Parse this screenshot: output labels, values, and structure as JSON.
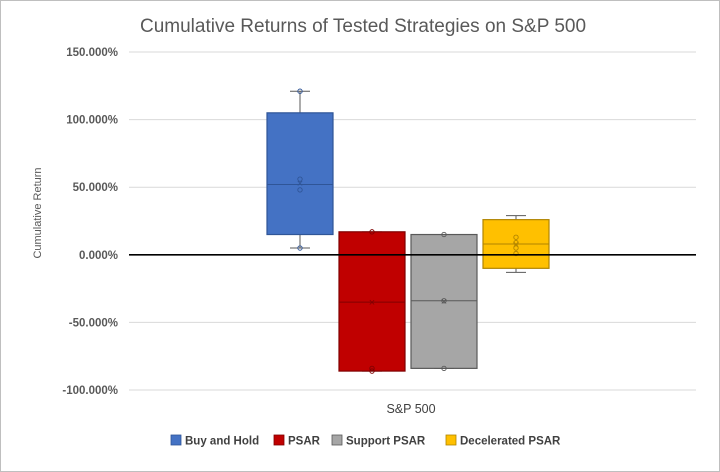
{
  "chart_data": {
    "type": "box",
    "title": "Cumulative Returns of Tested Strategies on S&P 500",
    "xlabel": "S&P 500",
    "ylabel": "Cumulative Return",
    "categories": [
      "S&P 500"
    ],
    "ylim": [
      -100,
      150
    ],
    "yticks": [
      -100,
      -50,
      0,
      50,
      100,
      150
    ],
    "ytick_labels": [
      "-100.000%",
      "-50.000%",
      "0.000%",
      "50.000%",
      "100.000%",
      "150.000%"
    ],
    "grid": true,
    "legend_position": "bottom",
    "series": [
      {
        "name": "Buy and Hold",
        "color": "#4472C4",
        "edge": "#2F5597",
        "min": 5,
        "q1": 15,
        "median": 52,
        "q3": 105,
        "max": 121,
        "mean": 53,
        "points": [
          5,
          48,
          56,
          121
        ]
      },
      {
        "name": "PSAR",
        "color": "#C00000",
        "edge": "#7F0000",
        "min": -86,
        "q1": -86,
        "median": -35,
        "q3": 17,
        "max": 17,
        "mean": -35,
        "points": [
          -84,
          -86,
          17
        ]
      },
      {
        "name": "Support PSAR",
        "color": "#A6A6A6",
        "edge": "#595959",
        "min": -84,
        "q1": -84,
        "median": -34,
        "q3": 15,
        "max": 15,
        "mean": -34,
        "points": [
          -84,
          -34,
          15
        ]
      },
      {
        "name": "Decelerated PSAR",
        "color": "#FFC000",
        "edge": "#B08400",
        "min": -13,
        "q1": -10,
        "median": 8,
        "q3": 26,
        "max": 29,
        "mean": 8,
        "points": [
          1,
          5,
          9,
          13
        ]
      }
    ]
  }
}
